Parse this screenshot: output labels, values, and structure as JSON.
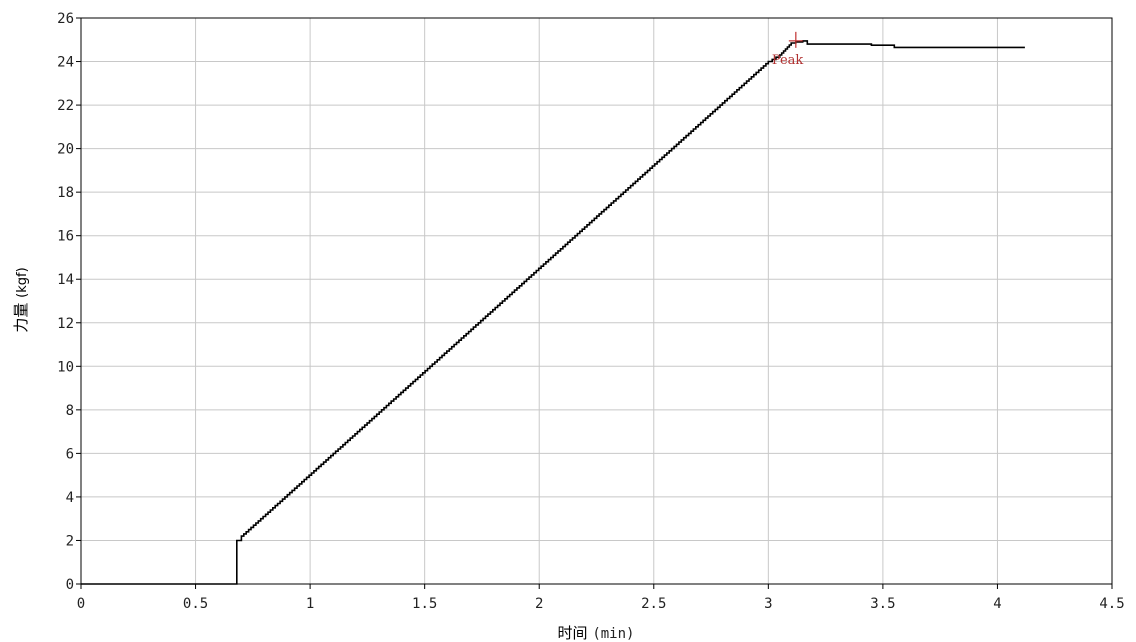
{
  "chart_data": {
    "type": "line",
    "title": "",
    "xlabel": "时间",
    "xlabel_unit": "(min)",
    "ylabel": "力量",
    "ylabel_unit": "(kgf)",
    "xlim": [
      0,
      4.5
    ],
    "ylim": [
      0,
      26
    ],
    "x_ticks": [
      "0",
      "0.5",
      "1",
      "1.5",
      "2",
      "2.5",
      "3",
      "3.5",
      "4",
      "4.5"
    ],
    "y_ticks": [
      "0",
      "2",
      "4",
      "6",
      "8",
      "10",
      "12",
      "14",
      "16",
      "18",
      "20",
      "22",
      "24",
      "26"
    ],
    "grid": true,
    "line_color": "#000000",
    "grid_color": "#c8c8c8",
    "series": [
      {
        "x": [
          0,
          0.68,
          0.68,
          0.7,
          3.0,
          3.05,
          3.1,
          3.12,
          3.15,
          3.17,
          3.17,
          3.2,
          3.45,
          3.45,
          3.5,
          3.55,
          3.55,
          4.12
        ],
        "y": [
          0,
          0,
          2.0,
          2.2,
          24.0,
          24.3,
          24.85,
          24.9,
          24.95,
          24.9,
          24.8,
          24.8,
          24.8,
          24.75,
          24.75,
          24.7,
          24.65,
          24.65
        ]
      }
    ],
    "annotations": [
      {
        "text": "Peak",
        "x": 3.12,
        "y": 24.95,
        "marker": "+",
        "color": "#c03030"
      }
    ]
  }
}
